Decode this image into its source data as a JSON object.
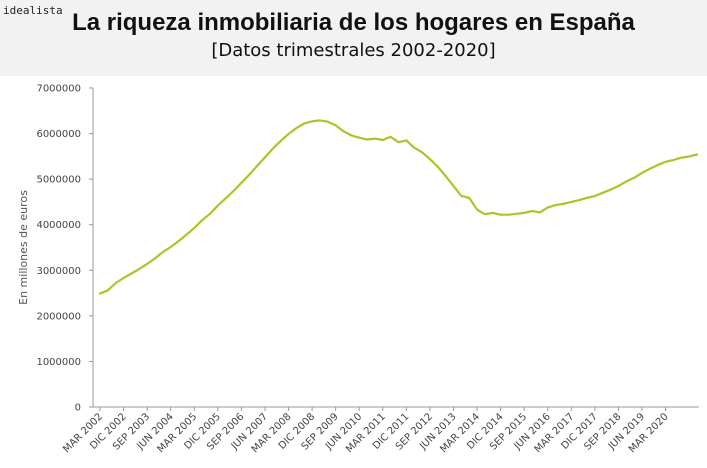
{
  "header": {
    "brand": "idealista",
    "title": "La riqueza inmobiliaria de los hogares en España",
    "subtitle": "[Datos trimestrales 2002-2020]"
  },
  "colors": {
    "line": "#a8c52a",
    "axis": "#999999",
    "header_bg": "#f2f2f2"
  },
  "chart_data": {
    "type": "line",
    "title": "La riqueza inmobiliaria de los hogares en España",
    "subtitle": "[Datos trimestrales 2002-2020]",
    "xlabel": "",
    "ylabel": "En millones de euros",
    "ylim": [
      0,
      7000000
    ],
    "yticks": [
      0,
      1000000,
      2000000,
      3000000,
      4000000,
      5000000,
      6000000,
      7000000
    ],
    "xtick_labels": [
      "MAR 2002",
      "DIC 2002",
      "SEP 2003",
      "JUN 2004",
      "MAR 2005",
      "DIC 2005",
      "SEP 2006",
      "JUN 2007",
      "MAR 2008",
      "DIC 2008",
      "SEP 2009",
      "JUN 2010",
      "MAR 2011",
      "DIC 2011",
      "SEP 2012",
      "JUN 2013",
      "MAR 2014",
      "DIC 2014",
      "SEP 2015",
      "JUN 2016",
      "MAR 2017",
      "DIC 2017",
      "SEP 2018",
      "JUN 2019",
      "MAR 2020"
    ],
    "grid": false,
    "series": [
      {
        "name": "Riqueza inmobiliaria",
        "values": [
          2490000,
          2560000,
          2720000,
          2830000,
          2930000,
          3030000,
          3140000,
          3260000,
          3400000,
          3510000,
          3640000,
          3780000,
          3930000,
          4100000,
          4240000,
          4420000,
          4580000,
          4740000,
          4920000,
          5100000,
          5290000,
          5480000,
          5670000,
          5840000,
          5990000,
          6120000,
          6220000,
          6270000,
          6290000,
          6260000,
          6180000,
          6050000,
          5960000,
          5910000,
          5870000,
          5890000,
          5860000,
          5930000,
          5810000,
          5850000,
          5690000,
          5590000,
          5440000,
          5270000,
          5070000,
          4850000,
          4630000,
          4590000,
          4330000,
          4230000,
          4260000,
          4220000,
          4220000,
          4240000,
          4260000,
          4300000,
          4270000,
          4380000,
          4430000,
          4460000,
          4500000,
          4540000,
          4590000,
          4630000,
          4700000,
          4770000,
          4850000,
          4950000,
          5030000,
          5140000,
          5230000,
          5310000,
          5380000,
          5420000,
          5470000,
          5500000,
          5540000
        ]
      }
    ]
  }
}
